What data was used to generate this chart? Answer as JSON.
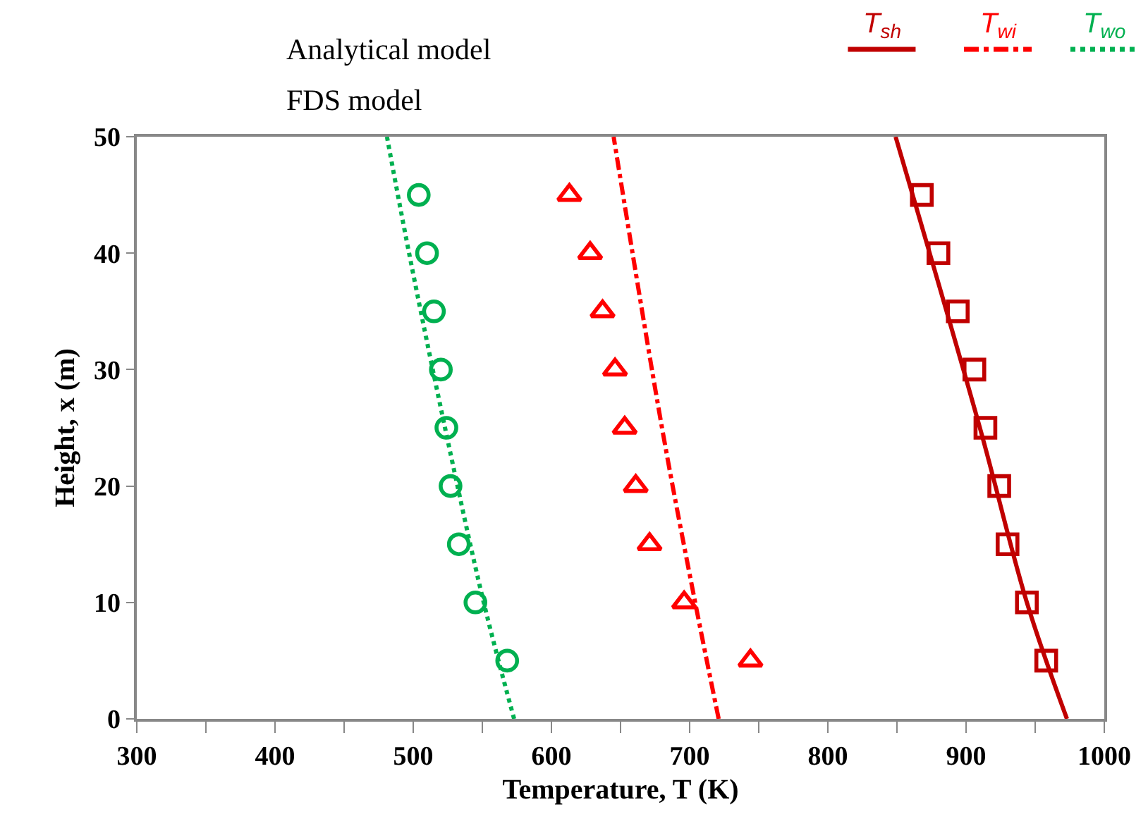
{
  "chart_data": {
    "type": "line",
    "xlabel": "Temperature, T (K)",
    "ylabel": "Height, x (m)",
    "xlim": [
      300,
      1000
    ],
    "xticks": [
      300,
      400,
      500,
      600,
      700,
      800,
      900,
      1000
    ],
    "ylim": [
      0,
      50
    ],
    "yticks": [
      0,
      10,
      20,
      30,
      40,
      50
    ],
    "legend": "top",
    "annotations": [
      "Analytical model",
      "FDS model"
    ],
    "series": [
      {
        "name": "T$_{sh}$",
        "color": "#c00000",
        "line_style": "solid",
        "marker": "none",
        "x": [
          973,
          944,
          910,
          849
        ],
        "values": [
          0,
          10,
          25,
          50
        ]
      },
      {
        "name": "T$_{wi}$",
        "color": "#ff0000",
        "line_style": "dashdot",
        "marker": "none",
        "x": [
          721,
          704,
          680,
          645
        ],
        "values": [
          0,
          10,
          25,
          50
        ]
      },
      {
        "name": "T$_{wo}$",
        "color": "#00b050",
        "line_style": "dotted",
        "marker": "none",
        "x": [
          573,
          551,
          523,
          497,
          481
        ],
        "values": [
          0,
          10,
          25,
          40,
          50
        ]
      },
      {
        "type": "scatter",
        "color": "#c00000",
        "marker": "square",
        "x": [
          958,
          944,
          930,
          924,
          914,
          906,
          894,
          880,
          868
        ],
        "values": [
          5,
          10,
          15,
          20,
          25,
          30,
          35,
          40,
          45
        ]
      },
      {
        "type": "scatter",
        "color": "#ff0000",
        "marker": "triangle",
        "x": [
          744,
          696,
          671,
          661,
          653,
          646,
          637,
          628,
          613
        ],
        "values": [
          5,
          10,
          15,
          20,
          25,
          30,
          35,
          40,
          45
        ]
      },
      {
        "type": "scatter",
        "color": "#00b050",
        "marker": "circle",
        "x": [
          568,
          545,
          533,
          527,
          524,
          520,
          515,
          510,
          504
        ],
        "values": [
          5,
          10,
          15,
          20,
          25,
          30,
          35,
          40,
          45
        ]
      }
    ]
  }
}
